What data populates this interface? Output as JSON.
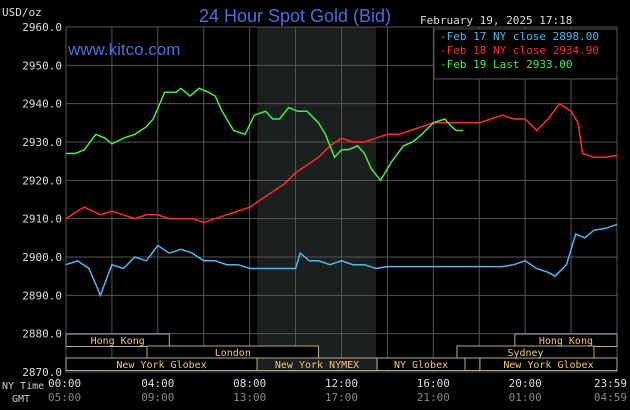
{
  "chart_data": {
    "type": "line",
    "title": "24 Hour Spot Gold (Bid)",
    "timestamp": "February 19, 2025 17:18",
    "watermark": "www.kitco.com",
    "ylabel": "USD/oz",
    "ylim": [
      2870,
      2960
    ],
    "yticks": [
      "2960.0",
      "2950.0",
      "2940.0",
      "2930.0",
      "2920.0",
      "2910.0",
      "2900.0",
      "2890.0",
      "2880.0",
      "2870.0"
    ],
    "ytick_values": [
      2960,
      2950,
      2940,
      2930,
      2920,
      2910,
      2900,
      2890,
      2880,
      2870
    ],
    "xlim": [
      0,
      24
    ],
    "x_row_labels": {
      "ny": "NY Time",
      "gmt": "GMT"
    },
    "xticks_ny": [
      "00:00",
      "04:00",
      "08:00",
      "12:00",
      "16:00",
      "20:00",
      "23:59"
    ],
    "xticks_gmt": [
      "05:00",
      "09:00",
      "13:00",
      "17:00",
      "21:00",
      "01:00",
      "04:59"
    ],
    "xtick_hours": [
      0,
      4,
      8,
      12,
      16,
      20,
      24
    ],
    "grid": true,
    "highlight_hours": [
      8.33,
      13.5
    ],
    "legend_position": "top-right",
    "series": [
      {
        "name": "Feb 17 NY close 2898.00",
        "color": "#4fb8f0",
        "points": [
          [
            0,
            2898
          ],
          [
            0.5,
            2899
          ],
          [
            1,
            2897
          ],
          [
            1.5,
            2890
          ],
          [
            2,
            2898
          ],
          [
            2.5,
            2897
          ],
          [
            3,
            2900
          ],
          [
            3.5,
            2899
          ],
          [
            4,
            2903
          ],
          [
            4.5,
            2901
          ],
          [
            5,
            2902
          ],
          [
            5.5,
            2901
          ],
          [
            6,
            2899
          ],
          [
            6.5,
            2899
          ],
          [
            7,
            2898
          ],
          [
            7.5,
            2898
          ],
          [
            8,
            2897
          ],
          [
            8.5,
            2897
          ],
          [
            9,
            2897
          ],
          [
            9.5,
            2897
          ],
          [
            10,
            2897
          ],
          [
            10.2,
            2901
          ],
          [
            10.6,
            2899
          ],
          [
            11,
            2899
          ],
          [
            11.5,
            2898
          ],
          [
            12,
            2899
          ],
          [
            12.5,
            2898
          ],
          [
            13,
            2898
          ],
          [
            13.5,
            2897
          ],
          [
            14,
            2897.5
          ],
          [
            15,
            2897.5
          ],
          [
            16,
            2897.5
          ],
          [
            17,
            2897.5
          ],
          [
            18,
            2897.5
          ],
          [
            19,
            2897.5
          ],
          [
            19.5,
            2898
          ],
          [
            20,
            2899
          ],
          [
            20.5,
            2897
          ],
          [
            21,
            2896
          ],
          [
            21.3,
            2895
          ],
          [
            21.8,
            2898
          ],
          [
            22.2,
            2906
          ],
          [
            22.6,
            2905
          ],
          [
            23,
            2907
          ],
          [
            23.5,
            2907.5
          ],
          [
            24,
            2908.5
          ]
        ]
      },
      {
        "name": "Feb 18 NY close 2934.90",
        "color": "#ff2b2b",
        "points": [
          [
            0,
            2910
          ],
          [
            0.5,
            2912
          ],
          [
            0.8,
            2913
          ],
          [
            1.5,
            2911
          ],
          [
            2,
            2912
          ],
          [
            2.5,
            2911
          ],
          [
            3,
            2910
          ],
          [
            3.5,
            2911
          ],
          [
            4,
            2911
          ],
          [
            4.5,
            2910
          ],
          [
            5,
            2910
          ],
          [
            5.5,
            2910
          ],
          [
            6,
            2909
          ],
          [
            6.5,
            2910
          ],
          [
            7,
            2911
          ],
          [
            7.5,
            2912
          ],
          [
            8,
            2913
          ],
          [
            8.5,
            2915
          ],
          [
            9,
            2917
          ],
          [
            9.5,
            2919
          ],
          [
            10,
            2922
          ],
          [
            10.5,
            2924
          ],
          [
            11,
            2926
          ],
          [
            11.5,
            2929
          ],
          [
            12,
            2931
          ],
          [
            12.5,
            2930
          ],
          [
            13,
            2930
          ],
          [
            13.5,
            2931
          ],
          [
            14,
            2932
          ],
          [
            14.5,
            2932
          ],
          [
            15,
            2933
          ],
          [
            15.5,
            2934
          ],
          [
            16,
            2935
          ],
          [
            16.5,
            2935
          ],
          [
            17,
            2935
          ],
          [
            17.5,
            2935
          ],
          [
            18,
            2935
          ],
          [
            18.5,
            2936
          ],
          [
            19,
            2937
          ],
          [
            19.5,
            2936
          ],
          [
            20,
            2936
          ],
          [
            20.5,
            2933
          ],
          [
            21,
            2936
          ],
          [
            21.5,
            2940
          ],
          [
            22,
            2938
          ],
          [
            22.3,
            2935
          ],
          [
            22.5,
            2927
          ],
          [
            23,
            2926
          ],
          [
            23.5,
            2926
          ],
          [
            24,
            2926.5
          ]
        ]
      },
      {
        "name": "Feb 19 Last 2933.00",
        "color": "#44ee44",
        "points": [
          [
            0,
            2927
          ],
          [
            0.4,
            2927
          ],
          [
            0.8,
            2928
          ],
          [
            1.3,
            2932
          ],
          [
            1.7,
            2931
          ],
          [
            2,
            2929.5
          ],
          [
            2.5,
            2931
          ],
          [
            3,
            2932
          ],
          [
            3.5,
            2934
          ],
          [
            3.8,
            2936
          ],
          [
            4.3,
            2943
          ],
          [
            4.8,
            2943
          ],
          [
            5,
            2944
          ],
          [
            5.4,
            2942
          ],
          [
            5.8,
            2944
          ],
          [
            6.2,
            2943
          ],
          [
            6.5,
            2942
          ],
          [
            6.8,
            2938
          ],
          [
            7.3,
            2933
          ],
          [
            7.8,
            2932
          ],
          [
            8.2,
            2937
          ],
          [
            8.7,
            2938
          ],
          [
            9,
            2936
          ],
          [
            9.3,
            2936
          ],
          [
            9.7,
            2939
          ],
          [
            10.1,
            2938
          ],
          [
            10.5,
            2938
          ],
          [
            11,
            2935
          ],
          [
            11.3,
            2932
          ],
          [
            11.7,
            2926
          ],
          [
            12,
            2928
          ],
          [
            12.3,
            2928
          ],
          [
            12.7,
            2929
          ],
          [
            13,
            2927
          ],
          [
            13.3,
            2923
          ],
          [
            13.7,
            2920
          ],
          [
            14.2,
            2925
          ],
          [
            14.7,
            2929
          ],
          [
            15.1,
            2930
          ],
          [
            15.5,
            2932
          ],
          [
            16,
            2935
          ],
          [
            16.5,
            2936
          ],
          [
            16.8,
            2934
          ],
          [
            17,
            2933
          ],
          [
            17.3,
            2933
          ]
        ]
      }
    ],
    "sessions": [
      {
        "label": "Hong Kong",
        "row": 0,
        "start": 0,
        "end": 4.5
      },
      {
        "label": "Hong Kong",
        "row": 0,
        "start": 19.55,
        "end": 24
      },
      {
        "label": "London",
        "row": 1,
        "start": 3.53,
        "end": 11.0
      },
      {
        "label": "Sydney",
        "row": 1,
        "start": 17.03,
        "end": 23.0
      },
      {
        "label": "New York Globex",
        "row": 2,
        "start": 0,
        "end": 8.32
      },
      {
        "label": "New York NYMEX",
        "row": 2,
        "start": 8.32,
        "end": 13.55
      },
      {
        "label": "NY Globex",
        "row": 2,
        "start": 13.55,
        "end": 17.38
      },
      {
        "label": "",
        "row": 2,
        "start": 17.38,
        "end": 18.03
      },
      {
        "label": "New York Globex",
        "row": 2,
        "start": 18.03,
        "end": 24
      }
    ]
  }
}
